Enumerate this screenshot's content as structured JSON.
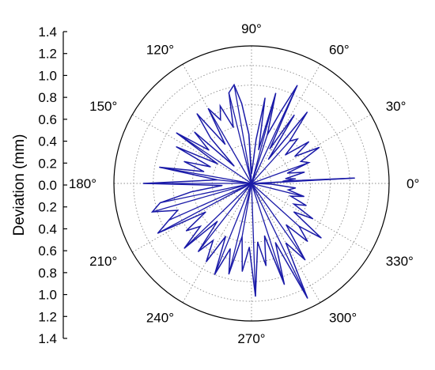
{
  "chart_data": {
    "type": "polar-line",
    "ylabel": "Deviation (mm)",
    "r_ticks": [
      0.2,
      0.4,
      0.6,
      0.8,
      1.0,
      1.2,
      1.4
    ],
    "axis_tick_labels": [
      "1.4",
      "1.2",
      "1.0",
      "0.8",
      "0.6",
      "0.4",
      "0.2",
      "0.0",
      "0.2",
      "0.4",
      "0.6",
      "0.8",
      "1.0",
      "1.2",
      "1.4"
    ],
    "angle_labels": [
      "0°",
      "30°",
      "60°",
      "90°",
      "120°",
      "150°",
      "180°",
      "210°",
      "240°",
      "270°",
      "300°",
      "330°"
    ],
    "rlim": [
      0,
      1.4
    ],
    "grid": true,
    "line_color": "#1a1aa8",
    "series": [
      {
        "points": [
          {
            "angle": 0,
            "r": 0.05
          },
          {
            "angle": 3,
            "r": 1.05
          },
          {
            "angle": 4,
            "r": 0.32
          },
          {
            "angle": 6,
            "r": 0.45
          },
          {
            "angle": 8,
            "r": 0.35
          },
          {
            "angle": 12,
            "r": 0.55
          },
          {
            "angle": 16,
            "r": 0.38
          },
          {
            "angle": 20,
            "r": 0.62
          },
          {
            "angle": 24,
            "r": 0.55
          },
          {
            "angle": 28,
            "r": 0.78
          },
          {
            "angle": 32,
            "r": 0.52
          },
          {
            "angle": 36,
            "r": 0.72
          },
          {
            "angle": 40,
            "r": 0.45
          },
          {
            "angle": 44,
            "r": 0.65
          },
          {
            "angle": 48,
            "r": 0.58
          },
          {
            "angle": 52,
            "r": 0.92
          },
          {
            "angle": 55,
            "r": 0.3
          },
          {
            "angle": 58,
            "r": 0.82
          },
          {
            "angle": 62,
            "r": 0.4
          },
          {
            "angle": 65,
            "r": 1.1
          },
          {
            "angle": 68,
            "r": 0.78
          },
          {
            "angle": 72,
            "r": 0.52
          },
          {
            "angle": 75,
            "r": 0.95
          },
          {
            "angle": 78,
            "r": 0.35
          },
          {
            "angle": 81,
            "r": 0.88
          },
          {
            "angle": 84,
            "r": 0.45
          },
          {
            "angle": 87,
            "r": 0.15
          },
          {
            "angle": 90,
            "r": 0.1
          },
          {
            "angle": 93,
            "r": 0.5
          },
          {
            "angle": 97,
            "r": 0.82
          },
          {
            "angle": 100,
            "r": 1.02
          },
          {
            "angle": 104,
            "r": 0.95
          },
          {
            "angle": 108,
            "r": 0.6
          },
          {
            "angle": 112,
            "r": 0.85
          },
          {
            "angle": 116,
            "r": 0.72
          },
          {
            "angle": 120,
            "r": 0.88
          },
          {
            "angle": 124,
            "r": 0.48
          },
          {
            "angle": 128,
            "r": 0.9
          },
          {
            "angle": 132,
            "r": 0.62
          },
          {
            "angle": 135,
            "r": 0.25
          },
          {
            "angle": 138,
            "r": 0.78
          },
          {
            "angle": 142,
            "r": 0.55
          },
          {
            "angle": 146,
            "r": 0.92
          },
          {
            "angle": 150,
            "r": 0.4
          },
          {
            "angle": 154,
            "r": 0.85
          },
          {
            "angle": 158,
            "r": 0.45
          },
          {
            "angle": 162,
            "r": 0.72
          },
          {
            "angle": 166,
            "r": 0.5
          },
          {
            "angle": 170,
            "r": 0.95
          },
          {
            "angle": 174,
            "r": 0.35
          },
          {
            "angle": 180,
            "r": 1.1
          },
          {
            "angle": 184,
            "r": 0.3
          },
          {
            "angle": 188,
            "r": 0.62
          },
          {
            "angle": 192,
            "r": 0.95
          },
          {
            "angle": 196,
            "r": 1.05
          },
          {
            "angle": 200,
            "r": 0.8
          },
          {
            "angle": 204,
            "r": 0.92
          },
          {
            "angle": 208,
            "r": 1.08
          },
          {
            "angle": 212,
            "r": 0.55
          },
          {
            "angle": 216,
            "r": 0.82
          },
          {
            "angle": 220,
            "r": 0.68
          },
          {
            "angle": 224,
            "r": 0.95
          },
          {
            "angle": 228,
            "r": 0.52
          },
          {
            "angle": 232,
            "r": 0.88
          },
          {
            "angle": 236,
            "r": 0.7
          },
          {
            "angle": 240,
            "r": 0.92
          },
          {
            "angle": 244,
            "r": 0.6
          },
          {
            "angle": 248,
            "r": 1.0
          },
          {
            "angle": 252,
            "r": 0.7
          },
          {
            "angle": 256,
            "r": 0.95
          },
          {
            "angle": 260,
            "r": 0.55
          },
          {
            "angle": 264,
            "r": 0.9
          },
          {
            "angle": 268,
            "r": 0.65
          },
          {
            "angle": 272,
            "r": 1.15
          },
          {
            "angle": 276,
            "r": 0.6
          },
          {
            "angle": 280,
            "r": 0.85
          },
          {
            "angle": 284,
            "r": 0.55
          },
          {
            "angle": 288,
            "r": 1.08
          },
          {
            "angle": 292,
            "r": 0.65
          },
          {
            "angle": 296,
            "r": 1.3
          },
          {
            "angle": 300,
            "r": 0.7
          },
          {
            "angle": 305,
            "r": 0.95
          },
          {
            "angle": 310,
            "r": 0.55
          },
          {
            "angle": 314,
            "r": 0.82
          },
          {
            "angle": 318,
            "r": 0.65
          },
          {
            "angle": 322,
            "r": 0.9
          },
          {
            "angle": 326,
            "r": 0.52
          },
          {
            "angle": 330,
            "r": 0.72
          },
          {
            "angle": 334,
            "r": 0.48
          },
          {
            "angle": 338,
            "r": 0.6
          },
          {
            "angle": 342,
            "r": 0.42
          },
          {
            "angle": 346,
            "r": 0.55
          },
          {
            "angle": 350,
            "r": 0.38
          },
          {
            "angle": 354,
            "r": 0.45
          },
          {
            "angle": 358,
            "r": 0.2
          }
        ]
      }
    ]
  }
}
